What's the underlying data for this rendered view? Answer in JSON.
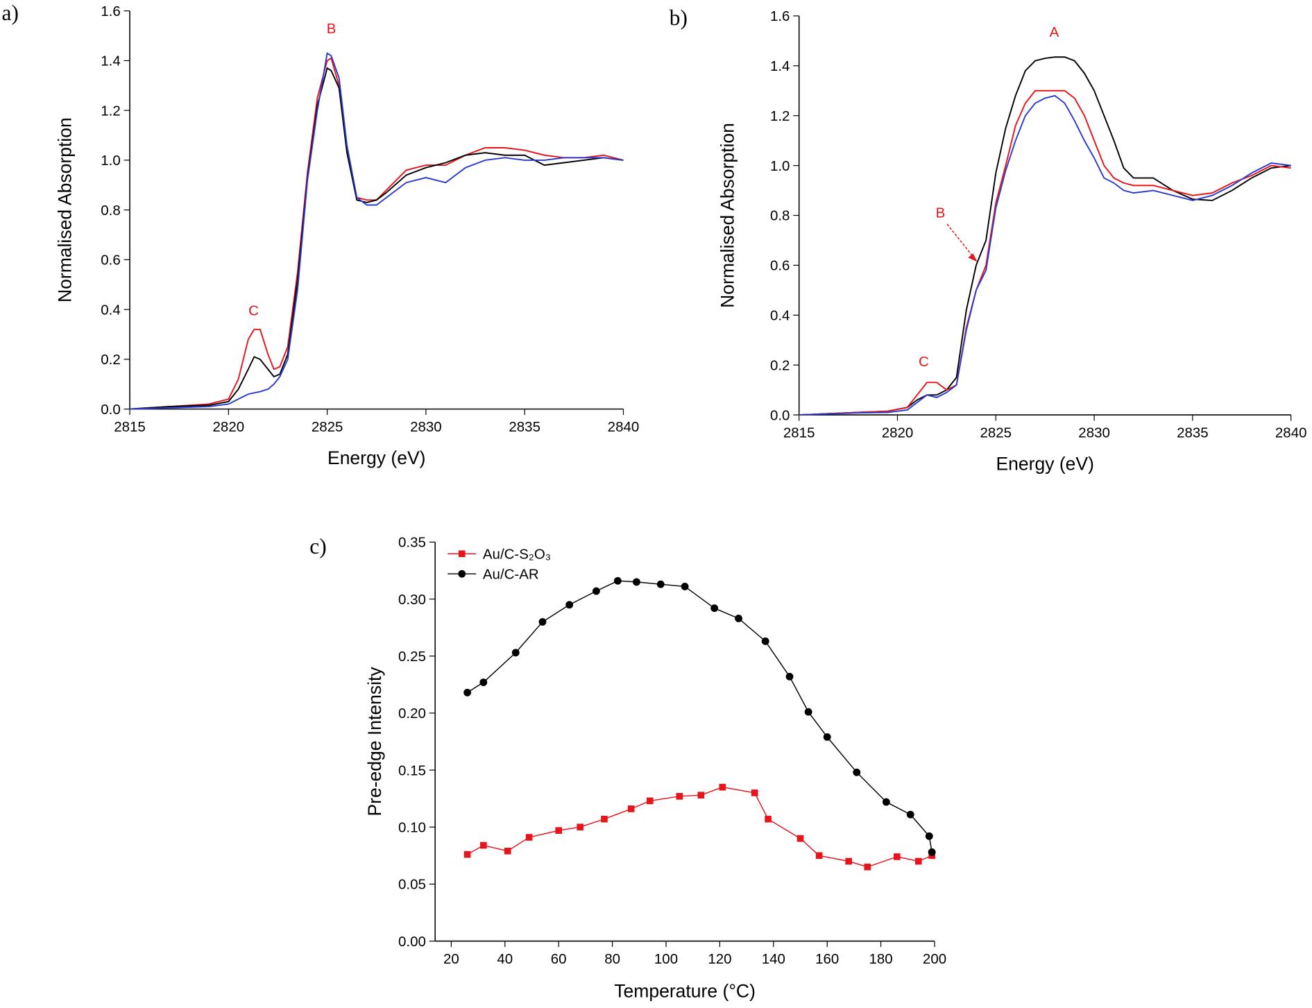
{
  "chart_data": [
    {
      "type": "line",
      "panel_label": "a)",
      "xlabel": "Energy (eV)",
      "ylabel": "Normalised Absorption",
      "annotations": [
        "B",
        "C"
      ],
      "annotation_color": "#e8141c",
      "xlim": [
        2815,
        2840
      ],
      "xticks": [
        2815,
        2820,
        2825,
        2830,
        2835,
        2840
      ],
      "ylim": [
        0,
        1.6
      ],
      "yticks": [
        {
          "value": 0,
          "label": "0.0"
        },
        0.2,
        0.4,
        0.6,
        0.8,
        {
          "value": 1,
          "label": "1.0"
        },
        1.2,
        1.4,
        1.6
      ],
      "x": [
        2815,
        2817,
        2819,
        2820,
        2820.5,
        2821,
        2821.3,
        2821.6,
        2822,
        2822.3,
        2822.6,
        2823,
        2823.5,
        2824,
        2824.5,
        2825,
        2825.2,
        2825.6,
        2826,
        2826.5,
        2827,
        2827.5,
        2828,
        2829,
        2830,
        2831,
        2832,
        2833,
        2834,
        2835,
        2836,
        2837,
        2838,
        2839,
        2840
      ],
      "series": [
        {
          "color": "#e8141c",
          "values": [
            0,
            0.01,
            0.02,
            0.04,
            0.12,
            0.28,
            0.32,
            0.32,
            0.22,
            0.16,
            0.17,
            0.25,
            0.55,
            0.95,
            1.25,
            1.4,
            1.41,
            1.3,
            1.05,
            0.85,
            0.84,
            0.84,
            0.88,
            0.96,
            0.98,
            0.98,
            1.02,
            1.05,
            1.05,
            1.04,
            1.02,
            1.01,
            1.01,
            1.02,
            1.0
          ]
        },
        {
          "color": "#000000",
          "values": [
            0,
            0.01,
            0.015,
            0.03,
            0.08,
            0.16,
            0.21,
            0.2,
            0.16,
            0.13,
            0.14,
            0.22,
            0.52,
            0.93,
            1.22,
            1.37,
            1.36,
            1.29,
            1.03,
            0.84,
            0.83,
            0.84,
            0.87,
            0.94,
            0.97,
            0.99,
            1.02,
            1.03,
            1.02,
            1.02,
            0.98,
            0.99,
            1.0,
            1.01,
            1.0
          ]
        },
        {
          "color": "#2a3ad1",
          "values": [
            0,
            0.005,
            0.01,
            0.02,
            0.04,
            0.06,
            0.065,
            0.07,
            0.08,
            0.1,
            0.13,
            0.2,
            0.48,
            0.92,
            1.2,
            1.43,
            1.42,
            1.33,
            1.06,
            0.85,
            0.82,
            0.82,
            0.85,
            0.91,
            0.93,
            0.91,
            0.97,
            1.0,
            1.01,
            1.0,
            1.0,
            1.01,
            1.01,
            1.01,
            1.0
          ]
        }
      ]
    },
    {
      "type": "line",
      "panel_label": "b)",
      "xlabel": "Energy (eV)",
      "ylabel": "Normalised Absorption",
      "annotations": [
        "A",
        "B",
        "C"
      ],
      "annotation_color": "#e8141c",
      "xlim": [
        2815,
        2840
      ],
      "xticks": [
        2815,
        2820,
        2825,
        2830,
        2835,
        2840
      ],
      "ylim": [
        0,
        1.6
      ],
      "yticks": [
        {
          "value": 0,
          "label": "0.0"
        },
        0.2,
        0.4,
        0.6,
        0.8,
        {
          "value": 1,
          "label": "1.0"
        },
        1.2,
        1.4,
        1.6
      ],
      "x": [
        2815,
        2818,
        2819.5,
        2820.5,
        2821,
        2821.5,
        2822,
        2822.5,
        2823,
        2823.5,
        2824,
        2824.5,
        2825,
        2825.5,
        2826,
        2826.5,
        2827,
        2827.5,
        2828,
        2828.5,
        2829,
        2829.5,
        2830,
        2830.5,
        2831,
        2831.5,
        2832,
        2833,
        2834,
        2835,
        2836,
        2837,
        2838,
        2839,
        2840
      ],
      "series": [
        {
          "color": "#000000",
          "values": [
            0,
            0.01,
            0.015,
            0.03,
            0.06,
            0.08,
            0.08,
            0.1,
            0.15,
            0.42,
            0.6,
            0.7,
            0.97,
            1.15,
            1.28,
            1.38,
            1.42,
            1.43,
            1.435,
            1.435,
            1.42,
            1.37,
            1.3,
            1.2,
            1.1,
            0.99,
            0.95,
            0.95,
            0.9,
            0.865,
            0.86,
            0.9,
            0.95,
            0.99,
            1.0
          ]
        },
        {
          "color": "#e8141c",
          "values": [
            0,
            0.01,
            0.015,
            0.03,
            0.08,
            0.13,
            0.13,
            0.1,
            0.12,
            0.35,
            0.5,
            0.6,
            0.85,
            1.0,
            1.16,
            1.25,
            1.3,
            1.3,
            1.3,
            1.3,
            1.27,
            1.2,
            1.1,
            1.0,
            0.95,
            0.93,
            0.92,
            0.92,
            0.9,
            0.88,
            0.89,
            0.93,
            0.96,
            1.0,
            0.99
          ]
        },
        {
          "color": "#2a3ad1",
          "values": [
            0,
            0.008,
            0.01,
            0.02,
            0.05,
            0.08,
            0.07,
            0.09,
            0.12,
            0.34,
            0.5,
            0.58,
            0.83,
            0.98,
            1.1,
            1.2,
            1.25,
            1.27,
            1.28,
            1.25,
            1.18,
            1.1,
            1.03,
            0.95,
            0.93,
            0.9,
            0.89,
            0.9,
            0.88,
            0.86,
            0.88,
            0.92,
            0.97,
            1.01,
            1.0
          ]
        }
      ]
    },
    {
      "type": "line",
      "panel_label": "c)",
      "xlabel": "Temperature (°C)",
      "ylabel": "Pre-edge Intensity",
      "legend": "upper left",
      "xlim": [
        14,
        200
      ],
      "xticks": [
        20,
        40,
        60,
        80,
        100,
        120,
        140,
        160,
        180,
        200
      ],
      "ylim": [
        0,
        0.35
      ],
      "yticks": [
        {
          "value": 0,
          "label": "0.00"
        },
        0.05,
        {
          "value": 0.1,
          "label": "0.10"
        },
        0.15,
        {
          "value": 0.2,
          "label": "0.20"
        },
        0.25,
        {
          "value": 0.3,
          "label": "0.30"
        },
        0.35
      ],
      "series": [
        {
          "name": "Au/C-S₂O₃",
          "color": "#e8141c",
          "marker": "square",
          "x": [
            26,
            32,
            41,
            49,
            60,
            68,
            77,
            87,
            94,
            105,
            113,
            121,
            133,
            138,
            150,
            157,
            168,
            175,
            186,
            194,
            199
          ],
          "values": [
            0.076,
            0.084,
            0.079,
            0.091,
            0.097,
            0.1,
            0.107,
            0.116,
            0.123,
            0.127,
            0.128,
            0.135,
            0.13,
            0.107,
            0.09,
            0.075,
            0.07,
            0.065,
            0.074,
            0.07,
            0.075
          ]
        },
        {
          "name": "Au/C-AR",
          "color": "#000000",
          "marker": "circle",
          "x": [
            26,
            32,
            44,
            54,
            64,
            74,
            82,
            89,
            98,
            107,
            118,
            127,
            137,
            146,
            153,
            160,
            171,
            182,
            191,
            198,
            199
          ],
          "values": [
            0.218,
            0.227,
            0.253,
            0.28,
            0.295,
            0.307,
            0.316,
            0.315,
            0.313,
            0.311,
            0.292,
            0.283,
            0.263,
            0.232,
            0.201,
            0.179,
            0.148,
            0.122,
            0.111,
            0.092,
            0.078
          ]
        }
      ]
    }
  ]
}
